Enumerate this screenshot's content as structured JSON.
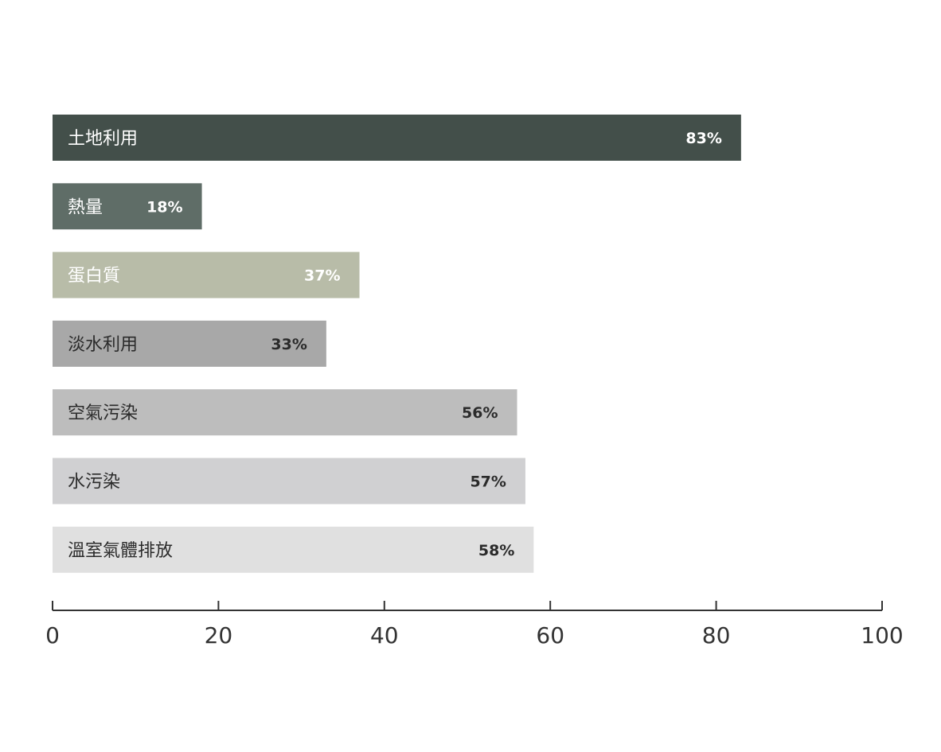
{
  "chart_data": {
    "type": "bar",
    "orientation": "horizontal",
    "title": "",
    "xlabel": "",
    "ylabel": "",
    "xlim": [
      0,
      100
    ],
    "x_ticks": [
      0,
      20,
      40,
      60,
      80,
      100
    ],
    "grid": false,
    "categories": [
      "土地利用",
      "熱量",
      "蛋白質",
      "淡水利用",
      "空氣污染",
      "水污染",
      "溫室氣體排放"
    ],
    "values": [
      83,
      18,
      37,
      33,
      56,
      57,
      58
    ],
    "value_labels": [
      "83%",
      "18%",
      "37%",
      "33%",
      "56%",
      "57%",
      "58%"
    ],
    "bar_colors": [
      "#434f4a",
      "#5f6d67",
      "#b8bca8",
      "#a8a8a8",
      "#bdbdbd",
      "#d0d0d2",
      "#e0e0e0"
    ],
    "label_colors": [
      "#ffffff",
      "#ffffff",
      "#ffffff",
      "#2b2b2b",
      "#2b2b2b",
      "#2b2b2b",
      "#2b2b2b"
    ]
  }
}
